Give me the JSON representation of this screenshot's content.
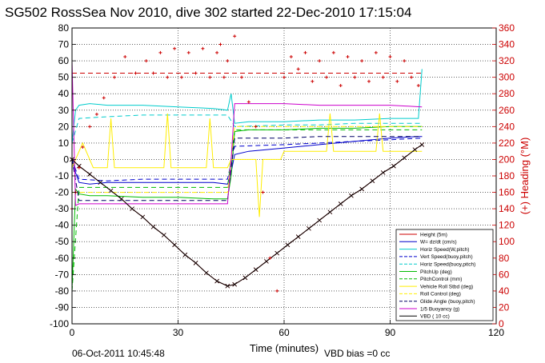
{
  "chart_data": {
    "type": "line",
    "title": "SG502 RossSea Nov 2010, dive 302 started 22-Dec-2010 17:15:04",
    "xlabel": "Time (minutes)",
    "ylabel_right": "(+) Heading (°M)",
    "footer_date": "06-Oct-2011 10:45:48",
    "footer_note": "VBD bias =0 cc",
    "xlim": [
      0,
      120
    ],
    "ylim": [
      -100,
      80
    ],
    "ylim_right": [
      0,
      360
    ],
    "x_ticks": [
      0,
      30,
      60,
      90,
      120
    ],
    "y_ticks": [
      -100,
      -90,
      -80,
      -70,
      -60,
      -50,
      -40,
      -30,
      -20,
      -10,
      0,
      10,
      20,
      30,
      40,
      50,
      60,
      70,
      80
    ],
    "y_ticks_right": [
      0,
      20,
      40,
      60,
      80,
      100,
      120,
      140,
      160,
      180,
      200,
      220,
      240,
      260,
      280,
      300,
      320,
      340,
      360
    ],
    "grid": true,
    "legend_position": "bottom-right",
    "series": [
      {
        "name": "Height (5m)",
        "color": "#cc0000",
        "style": "solid-x",
        "x": [
          0,
          2,
          5,
          8,
          11,
          14,
          17,
          20,
          23,
          26,
          29,
          32,
          35,
          38,
          41,
          44,
          46,
          49,
          52,
          55,
          58,
          61,
          64,
          67,
          70,
          73,
          76,
          79,
          82,
          85,
          88,
          91,
          94,
          97,
          99
        ],
        "y": [
          0,
          -4,
          -9,
          -14,
          -19,
          -24,
          -30,
          -35,
          -41,
          -46,
          -52,
          -58,
          -63,
          -69,
          -74,
          -77,
          -76,
          -72,
          -67,
          -62,
          -57,
          -52,
          -47,
          -42,
          -37,
          -32,
          -27,
          -22,
          -18,
          -13,
          -8,
          -4,
          1,
          6,
          9
        ]
      },
      {
        "name": "W= dz/dt (cm/s)",
        "color": "#0000cc",
        "style": "solid",
        "x": [
          0,
          1,
          2,
          5,
          10,
          20,
          30,
          40,
          44,
          45,
          46,
          50,
          60,
          70,
          80,
          90,
          98,
          99
        ],
        "y": [
          0,
          -8,
          -14,
          -15,
          -14,
          -14,
          -14,
          -14,
          -15,
          -8,
          3,
          5,
          7,
          9,
          11,
          13,
          14,
          14
        ]
      },
      {
        "name": "Horiz Speed(W,pitch)",
        "color": "#00cccc",
        "style": "solid",
        "x": [
          0,
          1,
          2,
          5,
          10,
          20,
          30,
          40,
          44,
          45,
          46,
          50,
          60,
          70,
          80,
          90,
          98,
          99
        ],
        "y": [
          10,
          30,
          33,
          34,
          33,
          33,
          32,
          31,
          30,
          40,
          22,
          23,
          23,
          24,
          24,
          25,
          25,
          55
        ]
      },
      {
        "name": "Vert Speed(buoy,pitch)",
        "color": "#0000cc",
        "style": "dashed",
        "x": [
          0,
          2,
          10,
          20,
          30,
          44,
          46,
          60,
          70,
          80,
          90,
          99
        ],
        "y": [
          0,
          -12,
          -13,
          -12,
          -12,
          -12,
          8,
          9,
          10,
          11,
          12,
          13
        ]
      },
      {
        "name": "Horiz Speed(buoy,pitch)",
        "color": "#00cccc",
        "style": "dashed",
        "x": [
          0,
          2,
          10,
          20,
          30,
          44,
          46,
          60,
          70,
          80,
          90,
          99
        ],
        "y": [
          10,
          25,
          26,
          27,
          27,
          27,
          20,
          21,
          21,
          22,
          22,
          22
        ]
      },
      {
        "name": "PitchUp (deg)",
        "color": "#00bb00",
        "style": "solid",
        "x": [
          0,
          1,
          2,
          5,
          10,
          20,
          30,
          40,
          44,
          45,
          46,
          50,
          60,
          70,
          80,
          90,
          98,
          99
        ],
        "y": [
          -80,
          -18,
          -21,
          -22,
          -22,
          -23,
          -23,
          -24,
          -24,
          -10,
          17,
          18,
          18,
          19,
          19,
          20,
          20,
          20
        ]
      },
      {
        "name": "PitchControl (mm)",
        "color": "#00bb00",
        "style": "dashed",
        "x": [
          0,
          2,
          10,
          20,
          30,
          44,
          46,
          60,
          70,
          80,
          90,
          99
        ],
        "y": [
          -80,
          -17,
          -17,
          -17,
          -17,
          -17,
          18,
          18,
          18,
          18,
          18,
          18
        ]
      },
      {
        "name": "Vehicle Roll Stbd (deg)",
        "color": "#ffee00",
        "style": "solid",
        "x": [
          0,
          3,
          6,
          10,
          11,
          12,
          16,
          20,
          24,
          26,
          27,
          28,
          32,
          36,
          38,
          39,
          40,
          44,
          45,
          46,
          50,
          52,
          53,
          54,
          56,
          58,
          59,
          60,
          64,
          70,
          72,
          73,
          74,
          80,
          86,
          87,
          88,
          92,
          96,
          99
        ],
        "y": [
          -5,
          10,
          -5,
          -5,
          25,
          -5,
          -5,
          -5,
          -5,
          -5,
          28,
          -5,
          -5,
          -5,
          -5,
          25,
          -5,
          -5,
          0,
          0,
          0,
          0,
          -35,
          0,
          0,
          0,
          0,
          5,
          5,
          5,
          5,
          28,
          5,
          5,
          5,
          28,
          5,
          5,
          5,
          5
        ]
      },
      {
        "name": "Roll Control (deg)",
        "color": "#ffee00",
        "style": "dashed",
        "x": [
          0,
          10,
          20,
          30,
          44,
          46,
          60,
          70,
          80,
          90,
          99
        ],
        "y": [
          -20,
          -20,
          -20,
          -20,
          -20,
          20,
          20,
          20,
          20,
          20,
          20
        ]
      },
      {
        "name": "Glide Angle (buoy,pitch)",
        "color": "#000066",
        "style": "dashed",
        "x": [
          0,
          2,
          10,
          20,
          30,
          44,
          46,
          60,
          70,
          80,
          90,
          99
        ],
        "y": [
          0,
          -25,
          -25,
          -25,
          -25,
          -25,
          13,
          13,
          14,
          14,
          14,
          14
        ]
      },
      {
        "name": "1/5 Buoyancy (g)",
        "color": "#cc00cc",
        "style": "solid",
        "x": [
          0,
          1,
          2,
          10,
          20,
          30,
          40,
          44,
          45,
          46,
          50,
          60,
          70,
          80,
          90,
          99
        ],
        "y": [
          60,
          -28,
          -27,
          -27,
          -27,
          -27,
          -27,
          -27,
          0,
          34,
          34,
          34,
          33,
          33,
          33,
          32
        ]
      },
      {
        "name": "VBD ( 10 cc)",
        "color": "#000000",
        "style": "solid-x",
        "x": [
          0,
          2,
          5,
          8,
          11,
          14,
          17,
          20,
          23,
          26,
          29,
          32,
          35,
          38,
          41,
          44,
          46,
          49,
          52,
          55,
          58,
          61,
          64,
          67,
          70,
          73,
          76,
          79,
          82,
          85,
          88,
          91,
          94,
          97,
          99
        ],
        "y": [
          0,
          -4,
          -9,
          -14,
          -19,
          -24,
          -30,
          -35,
          -41,
          -46,
          -52,
          -58,
          -63,
          -69,
          -74,
          -77,
          -76,
          -72,
          -67,
          -62,
          -57,
          -52,
          -47,
          -42,
          -37,
          -32,
          -27,
          -22,
          -18,
          -13,
          -8,
          -4,
          1,
          6,
          9
        ]
      }
    ],
    "heading_series": {
      "color": "#cc0000",
      "axis": "right",
      "x": [
        0,
        1,
        2,
        3,
        5,
        7,
        9,
        12,
        15,
        18,
        21,
        23,
        25,
        27,
        29,
        31,
        33,
        35,
        37,
        39,
        41,
        42,
        43,
        44,
        46,
        48,
        50,
        52,
        54,
        56,
        58,
        60,
        62,
        64,
        66,
        68,
        70,
        72,
        74,
        76,
        78,
        80,
        82,
        84,
        86,
        88,
        90,
        92,
        94,
        96,
        98
      ],
      "y": [
        140,
        160,
        190,
        215,
        240,
        255,
        275,
        300,
        325,
        305,
        320,
        305,
        330,
        300,
        335,
        300,
        330,
        305,
        335,
        300,
        330,
        340,
        300,
        320,
        350,
        300,
        270,
        240,
        160,
        80,
        40,
        300,
        325,
        310,
        330,
        295,
        320,
        300,
        330,
        290,
        325,
        300,
        320,
        295,
        330,
        300,
        325,
        295,
        320,
        300,
        290
      ]
    },
    "reference_lines": [
      {
        "color": "#cc0000",
        "style": "dashed",
        "axis": "right",
        "y": 305,
        "x": [
          0,
          99
        ]
      }
    ]
  }
}
